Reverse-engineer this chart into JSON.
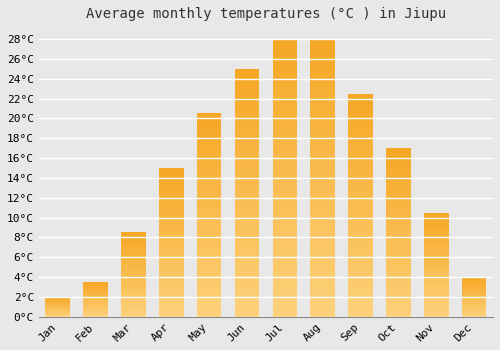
{
  "title": "Average monthly temperatures (°C ) in Jiupu",
  "months": [
    "Jan",
    "Feb",
    "Mar",
    "Apr",
    "May",
    "Jun",
    "Jul",
    "Aug",
    "Sep",
    "Oct",
    "Nov",
    "Dec"
  ],
  "temperatures": [
    2,
    3.5,
    8.5,
    15,
    20.5,
    25,
    28,
    28,
    22.5,
    17,
    10.5,
    4
  ],
  "bar_color": "#F5A623",
  "bar_color_light": "#FDD17A",
  "ylim": [
    0,
    29
  ],
  "yticks": [
    0,
    2,
    4,
    6,
    8,
    10,
    12,
    14,
    16,
    18,
    20,
    22,
    24,
    26,
    28
  ],
  "background_color": "#e8e8e8",
  "grid_color": "#ffffff",
  "title_fontsize": 10,
  "tick_fontsize": 8,
  "font_family": "monospace"
}
